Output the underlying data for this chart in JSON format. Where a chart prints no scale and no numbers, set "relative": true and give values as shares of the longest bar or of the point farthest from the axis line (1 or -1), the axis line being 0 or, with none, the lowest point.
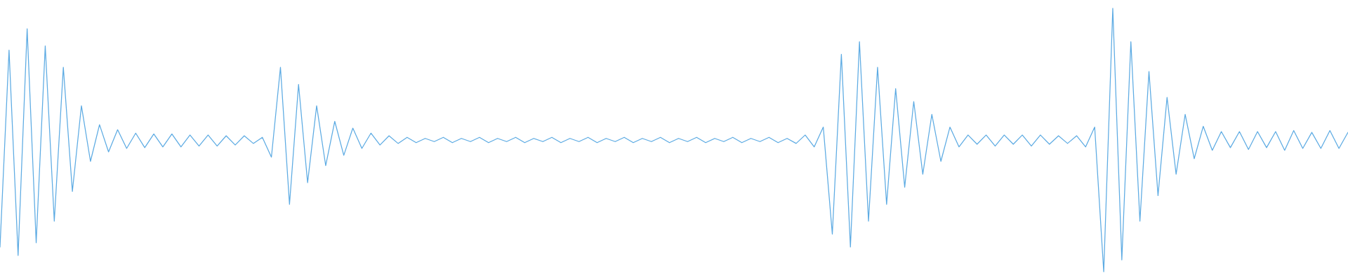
{
  "chart_data": {
    "type": "line",
    "relative": true,
    "categories": [
      null,
      null,
      null,
      null,
      null,
      null,
      null,
      null,
      null,
      null,
      null,
      null,
      null,
      null,
      null,
      null,
      null,
      null,
      null,
      null,
      null,
      null,
      null,
      null,
      null,
      null,
      null,
      null,
      null,
      null,
      null,
      null,
      null,
      null,
      null,
      null,
      null,
      null,
      null,
      null,
      null,
      null,
      null,
      null,
      null,
      null,
      null,
      null,
      null,
      null,
      null,
      null,
      null,
      null,
      null,
      null,
      null,
      null,
      null,
      null,
      null,
      null,
      null,
      null,
      null,
      null,
      null,
      null,
      null,
      null,
      null,
      null,
      null,
      null,
      null,
      null,
      null,
      null,
      null,
      null,
      null,
      null,
      null,
      null,
      null,
      null,
      null,
      null,
      null,
      null,
      null,
      null,
      null,
      null,
      null,
      null,
      null,
      null,
      null,
      null,
      null,
      null,
      null,
      null,
      null,
      null,
      null,
      null,
      null,
      null,
      null,
      null,
      null,
      null,
      null,
      null,
      null,
      null,
      null,
      null,
      null,
      null,
      null,
      null,
      null,
      null,
      null,
      null,
      null,
      null,
      null,
      null,
      null,
      null,
      null,
      null,
      null,
      null,
      null,
      null,
      null,
      null,
      null,
      null,
      null,
      null,
      null,
      null,
      null,
      null
    ],
    "series": [
      {
        "color": "#5dabe3",
        "values": [
          0.094,
          0.841,
          0.062,
          0.922,
          0.11,
          0.857,
          0.192,
          0.776,
          0.305,
          0.63,
          0.419,
          0.558,
          0.455,
          0.539,
          0.468,
          0.526,
          0.471,
          0.523,
          0.474,
          0.523,
          0.474,
          0.519,
          0.477,
          0.519,
          0.477,
          0.516,
          0.481,
          0.516,
          0.487,
          0.51,
          0.435,
          0.776,
          0.256,
          0.711,
          0.338,
          0.63,
          0.403,
          0.571,
          0.442,
          0.545,
          0.468,
          0.526,
          0.481,
          0.516,
          0.487,
          0.51,
          0.49,
          0.506,
          0.494,
          0.51,
          0.49,
          0.506,
          0.494,
          0.51,
          0.49,
          0.506,
          0.494,
          0.51,
          0.49,
          0.506,
          0.494,
          0.51,
          0.49,
          0.506,
          0.494,
          0.51,
          0.49,
          0.506,
          0.494,
          0.51,
          0.49,
          0.506,
          0.494,
          0.51,
          0.49,
          0.506,
          0.494,
          0.51,
          0.49,
          0.506,
          0.494,
          0.51,
          0.49,
          0.506,
          0.494,
          0.51,
          0.49,
          0.506,
          0.487,
          0.519,
          0.474,
          0.549,
          0.143,
          0.825,
          0.094,
          0.873,
          0.192,
          0.776,
          0.256,
          0.695,
          0.321,
          0.646,
          0.37,
          0.597,
          0.419,
          0.549,
          0.474,
          0.519,
          0.484,
          0.519,
          0.477,
          0.519,
          0.484,
          0.519,
          0.477,
          0.519,
          0.484,
          0.516,
          0.487,
          0.516,
          0.474,
          0.549,
          0.0,
          1.0,
          0.045,
          0.873,
          0.192,
          0.76,
          0.289,
          0.662,
          0.37,
          0.597,
          0.429,
          0.552,
          0.461,
          0.532,
          0.471,
          0.532,
          0.464,
          0.532,
          0.471,
          0.532,
          0.461,
          0.536,
          0.468,
          0.529,
          0.468,
          0.536,
          0.468,
          0.529
        ]
      }
    ]
  }
}
